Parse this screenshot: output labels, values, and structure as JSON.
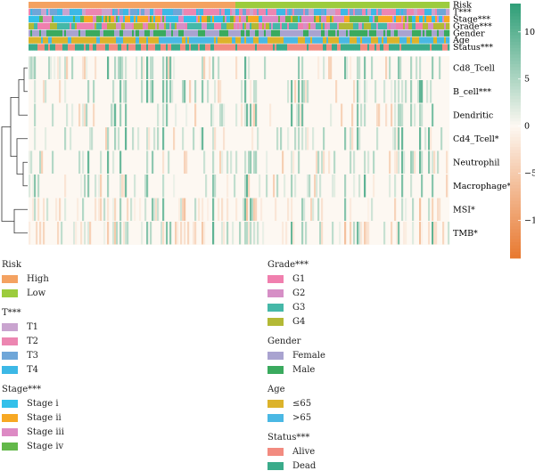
{
  "chart_data": {
    "type": "heatmap",
    "title": "",
    "xlabel": "",
    "ylabel": "",
    "annotation_tracks": [
      {
        "label": "Risk",
        "categories": [
          "High",
          "Low"
        ]
      },
      {
        "label": "T***",
        "categories": [
          "T1",
          "T2",
          "T3",
          "T4"
        ]
      },
      {
        "label": "Stage***",
        "categories": [
          "Stage i",
          "Stage ii",
          "Stage iii",
          "Stage iv"
        ]
      },
      {
        "label": "Grade***",
        "categories": [
          "G1",
          "G2",
          "G3",
          "G4"
        ]
      },
      {
        "label": "Gender",
        "categories": [
          "Female",
          "Male"
        ]
      },
      {
        "label": "Age",
        "categories": [
          "≤65",
          ">65"
        ]
      },
      {
        "label": "Status***",
        "categories": [
          "Alive",
          "Dead"
        ]
      }
    ],
    "rows": [
      "Cd8_Tcell",
      "B_cell***",
      "Dendritic",
      "Cd4_Tcell*",
      "Neutrophil",
      "Macrophage**",
      "MSI*",
      "TMB*"
    ],
    "colorbar": {
      "ticks": [
        10,
        5,
        0,
        -5,
        -10
      ],
      "range": [
        -14,
        13
      ],
      "positive_color": "#2e9e77",
      "negative_color": "#e8782f",
      "zero_color": "#fdf8f2"
    },
    "dendrogram": "row-clustered",
    "legend": {
      "left": [
        {
          "title": "Risk",
          "items": [
            {
              "label": "High",
              "color": "#f4a261"
            },
            {
              "label": "Low",
              "color": "#9ccc3d"
            }
          ]
        },
        {
          "title": "T***",
          "items": [
            {
              "label": "T1",
              "color": "#c9a4cf"
            },
            {
              "label": "T2",
              "color": "#ec86b1"
            },
            {
              "label": "T3",
              "color": "#6fa6d8"
            },
            {
              "label": "T4",
              "color": "#3cb8e6"
            }
          ]
        },
        {
          "title": "Stage***",
          "items": [
            {
              "label": "Stage i",
              "color": "#33c0ea"
            },
            {
              "label": "Stage ii",
              "color": "#f7a823"
            },
            {
              "label": "Stage iii",
              "color": "#dd8ac4"
            },
            {
              "label": "Stage iv",
              "color": "#63b84a"
            }
          ]
        }
      ],
      "right": [
        {
          "title": "Grade***",
          "items": [
            {
              "label": "G1",
              "color": "#f07fae"
            },
            {
              "label": "G2",
              "color": "#d68fc6"
            },
            {
              "label": "G3",
              "color": "#45b8a8"
            },
            {
              "label": "G4",
              "color": "#b3b935"
            }
          ]
        },
        {
          "title": "Gender",
          "items": [
            {
              "label": "Female",
              "color": "#a9a3d0"
            },
            {
              "label": "Male",
              "color": "#3aaa5e"
            }
          ]
        },
        {
          "title": "Age",
          "items": [
            {
              "label": "≤65",
              "color": "#dcb32b"
            },
            {
              "label": ">65",
              "color": "#4ab8e4"
            }
          ]
        },
        {
          "title": "Status***",
          "items": [
            {
              "label": "Alive",
              "color": "#f28b80"
            },
            {
              "label": "Dead",
              "color": "#3aab8a"
            }
          ]
        }
      ]
    }
  }
}
